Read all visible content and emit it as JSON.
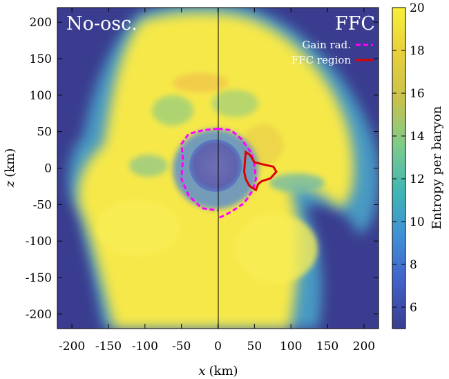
{
  "chart_data": {
    "type": "heatmap",
    "xlabel_var": "x",
    "xlabel_unit": "(km)",
    "ylabel_var": "z",
    "ylabel_unit": "(km)",
    "xlim": [
      -220,
      220
    ],
    "ylim": [
      -220,
      220
    ],
    "x_ticks": [
      -200,
      -150,
      -100,
      -50,
      0,
      50,
      100,
      150,
      200
    ],
    "y_ticks": [
      -200,
      -150,
      -100,
      -50,
      0,
      50,
      100,
      150,
      200
    ],
    "x_tick_labels": [
      "-200",
      "-150",
      "-100",
      "-50",
      "0",
      "50",
      "100",
      "150",
      "200"
    ],
    "y_tick_labels": [
      "-200",
      "-150",
      "-100",
      "-50",
      "0",
      "50",
      "100",
      "150",
      "200"
    ],
    "panels": {
      "left": "No-osc.",
      "right": "FFC"
    },
    "colorbar": {
      "label": "Entropy per baryon",
      "range": [
        5,
        20
      ],
      "ticks": [
        6,
        8,
        10,
        12,
        14,
        16,
        18,
        20
      ],
      "tick_labels": [
        "6",
        "8",
        "10",
        "12",
        "14",
        "16",
        "18",
        "20"
      ],
      "colors": [
        "#3a3d8f",
        "#4060c8",
        "#3f8fd6",
        "#3fb7b3",
        "#7ecb8a",
        "#c8c24c",
        "#e8cf3c",
        "#f8ef3a"
      ]
    },
    "legend": {
      "placement": "top-right",
      "entries": [
        {
          "label": "Gain rad.",
          "color": "#ff00ff",
          "style": "dashed"
        },
        {
          "label": "FFC region",
          "color": "#e00000",
          "style": "solid"
        }
      ]
    },
    "background_color": "#3a3d8f",
    "ejecta_color": "#f8ea48",
    "core_color": "#6d6fb6",
    "gain_radius_left": [
      [
        0,
        54
      ],
      [
        -20,
        52
      ],
      [
        -40,
        47
      ],
      [
        -50,
        33
      ],
      [
        -48,
        12
      ],
      [
        -50,
        -15
      ],
      [
        -40,
        -38
      ],
      [
        -22,
        -55
      ],
      [
        0,
        -58
      ]
    ],
    "gain_radius_right": [
      [
        0,
        54
      ],
      [
        18,
        52
      ],
      [
        32,
        40
      ],
      [
        45,
        22
      ],
      [
        50,
        5
      ],
      [
        52,
        -15
      ],
      [
        48,
        -30
      ],
      [
        36,
        -48
      ],
      [
        18,
        -60
      ],
      [
        2,
        -68
      ]
    ],
    "ffc_region": [
      [
        38,
        22
      ],
      [
        44,
        18
      ],
      [
        50,
        8
      ],
      [
        62,
        5
      ],
      [
        76,
        2
      ],
      [
        80,
        -5
      ],
      [
        72,
        -14
      ],
      [
        60,
        -18
      ],
      [
        55,
        -22
      ],
      [
        52,
        -30
      ],
      [
        47,
        -27
      ],
      [
        43,
        -24
      ],
      [
        38,
        -15
      ],
      [
        36,
        -5
      ],
      [
        37,
        10
      ],
      [
        38,
        22
      ]
    ]
  }
}
